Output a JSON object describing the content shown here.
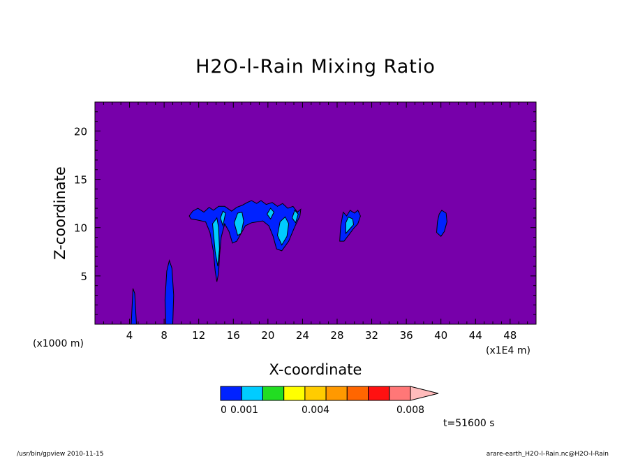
{
  "chart_data": {
    "type": "heatmap",
    "title": "H2O-l-Rain Mixing Ratio",
    "xlabel": "X-coordinate",
    "ylabel": "Z-coordinate",
    "x_unit": "(x1E4 m)",
    "y_unit": "(x1000 m)",
    "xlim": [
      0,
      51
    ],
    "ylim": [
      0,
      23
    ],
    "x_ticks": [
      4,
      8,
      12,
      16,
      20,
      24,
      28,
      32,
      36,
      40,
      44,
      48
    ],
    "y_ticks": [
      5,
      10,
      15,
      20
    ],
    "background_color": "#7700aa",
    "colorbar": {
      "colors": [
        "#0022ff",
        "#00ccff",
        "#22dd22",
        "#ffff00",
        "#ffcc00",
        "#ff9900",
        "#ff6600",
        "#ff1111",
        "#ff7777",
        "#ffbbbb"
      ],
      "labels": [
        {
          "text": "0",
          "value": 0
        },
        {
          "text": "0.001",
          "value": 0.001
        },
        {
          "text": "0.004",
          "value": 0.004
        },
        {
          "text": "0.008",
          "value": 0.008
        }
      ]
    },
    "regions": [
      {
        "level": 1,
        "points": [
          [
            4.2,
            0
          ],
          [
            4.4,
            3.7
          ],
          [
            4.6,
            3.2
          ],
          [
            4.8,
            0
          ]
        ]
      },
      {
        "level": 1,
        "points": [
          [
            8.2,
            0
          ],
          [
            8.1,
            2.5
          ],
          [
            8.3,
            5.5
          ],
          [
            8.6,
            6.6
          ],
          [
            8.9,
            5.8
          ],
          [
            9.1,
            3
          ],
          [
            9,
            0
          ]
        ]
      },
      {
        "level": 1,
        "points": [
          [
            10.9,
            11.2
          ],
          [
            11.3,
            11.7
          ],
          [
            11.9,
            12
          ],
          [
            12.6,
            11.6
          ],
          [
            13.2,
            12.1
          ],
          [
            13.7,
            11.8
          ],
          [
            14.3,
            12.2
          ],
          [
            15,
            12.2
          ],
          [
            15.8,
            11.7
          ],
          [
            16.4,
            12.1
          ],
          [
            17,
            12.3
          ],
          [
            17.6,
            12.6
          ],
          [
            18.1,
            12.8
          ],
          [
            18.7,
            12.5
          ],
          [
            19.2,
            12.8
          ],
          [
            19.8,
            12.4
          ],
          [
            20.5,
            12.6
          ],
          [
            21.1,
            12.2
          ],
          [
            21.7,
            12.5
          ],
          [
            22.3,
            12
          ],
          [
            22.9,
            12.2
          ],
          [
            23.4,
            11.6
          ],
          [
            23.8,
            11.9
          ],
          [
            23.7,
            11.2
          ],
          [
            23.1,
            10.1
          ],
          [
            22.4,
            8.6
          ],
          [
            21.6,
            7.6
          ],
          [
            21,
            7.8
          ],
          [
            20.6,
            9.1
          ],
          [
            20.1,
            10.2
          ],
          [
            19.4,
            10.7
          ],
          [
            18.8,
            10.6
          ],
          [
            18.1,
            10.5
          ],
          [
            17.4,
            10.2
          ],
          [
            16.9,
            9.4
          ],
          [
            16.4,
            8.6
          ],
          [
            15.9,
            8.4
          ],
          [
            15.5,
            9.6
          ],
          [
            15,
            10.4
          ],
          [
            14.6,
            9
          ],
          [
            14.4,
            7
          ],
          [
            14.3,
            5.3
          ],
          [
            14.1,
            4.4
          ],
          [
            13.9,
            5.5
          ],
          [
            13.7,
            7.5
          ],
          [
            13.3,
            9.5
          ],
          [
            12.8,
            10.6
          ],
          [
            11.8,
            10.8
          ],
          [
            11.1,
            10.9
          ]
        ]
      },
      {
        "level": 2,
        "points": [
          [
            16.1,
            10.5
          ],
          [
            16.5,
            9.2
          ],
          [
            16.9,
            9.4
          ],
          [
            17.2,
            10.7
          ],
          [
            17,
            11.6
          ],
          [
            16.5,
            11.5
          ]
        ]
      },
      {
        "level": 2,
        "points": [
          [
            14.5,
            11
          ],
          [
            14.8,
            10.2
          ],
          [
            15.1,
            11.5
          ],
          [
            14.8,
            11.7
          ]
        ]
      },
      {
        "level": 2,
        "points": [
          [
            13.6,
            10.4
          ],
          [
            13.9,
            7.5
          ],
          [
            14.2,
            6
          ],
          [
            14.4,
            7.8
          ],
          [
            14.3,
            10
          ],
          [
            14.1,
            11
          ]
        ]
      },
      {
        "level": 2,
        "points": [
          [
            21.1,
            9.2
          ],
          [
            21.6,
            8.2
          ],
          [
            22.2,
            9.1
          ],
          [
            22.4,
            10.4
          ],
          [
            22,
            11.1
          ],
          [
            21.4,
            10.6
          ]
        ]
      },
      {
        "level": 2,
        "points": [
          [
            22.8,
            11
          ],
          [
            23.2,
            10.5
          ],
          [
            23.5,
            11.4
          ],
          [
            23.1,
            11.8
          ]
        ]
      },
      {
        "level": 2,
        "points": [
          [
            19.9,
            11.4
          ],
          [
            20.3,
            10.9
          ],
          [
            20.7,
            11.6
          ],
          [
            20.3,
            12
          ]
        ]
      },
      {
        "level": 1,
        "points": [
          [
            28.3,
            8.6
          ],
          [
            28.4,
            10.1
          ],
          [
            28.7,
            11.6
          ],
          [
            29.1,
            11.2
          ],
          [
            29.5,
            11.8
          ],
          [
            30,
            11.5
          ],
          [
            30.4,
            11.8
          ],
          [
            30.7,
            11.2
          ],
          [
            30.4,
            10.4
          ],
          [
            29.9,
            9.9
          ],
          [
            29.4,
            9.3
          ],
          [
            28.8,
            8.6
          ]
        ]
      },
      {
        "level": 2,
        "points": [
          [
            29,
            9.4
          ],
          [
            29.4,
            9.8
          ],
          [
            29.9,
            10.3
          ],
          [
            29.8,
            10.9
          ],
          [
            29.3,
            11.1
          ],
          [
            29,
            10.5
          ]
        ]
      },
      {
        "level": 1,
        "points": [
          [
            39.5,
            9.5
          ],
          [
            39.6,
            10.6
          ],
          [
            39.8,
            11.4
          ],
          [
            40.1,
            11.8
          ],
          [
            40.6,
            11.5
          ],
          [
            40.7,
            10.6
          ],
          [
            40.4,
            9.6
          ],
          [
            40,
            9.1
          ]
        ]
      }
    ]
  },
  "time_label": "t=51600 s",
  "footer": {
    "left": "/usr/bin/gpview   2010-11-15",
    "right": "arare-earth_H2O-l-Rain.nc@H2O-l-Rain"
  }
}
